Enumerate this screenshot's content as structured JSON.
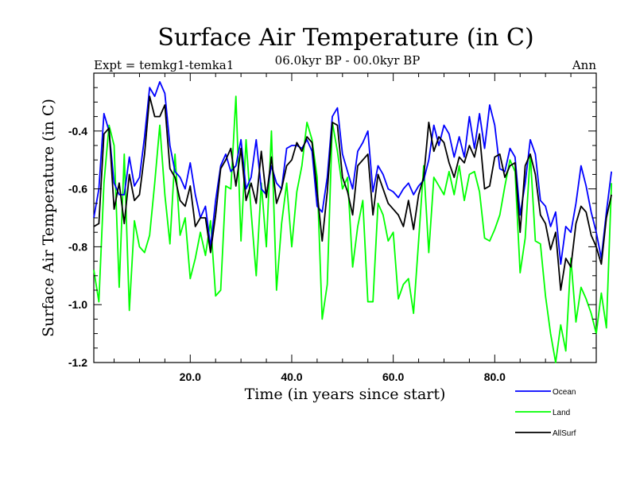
{
  "chart_data": {
    "type": "line",
    "title": "Surface Air Temperature (in C)",
    "subtitle_left": "Expt = temkg1-temka1",
    "subtitle_center": "06.0kyr BP - 00.0kyr BP",
    "subtitle_right": "Ann",
    "xlabel": "Time (in years since start)",
    "ylabel": "Surface Air Temperature (in C)",
    "xlim": [
      1,
      100
    ],
    "ylim": [
      -1.2,
      -0.2
    ],
    "xticks": [
      20,
      40,
      60,
      80
    ],
    "xtick_labels": [
      "20.0",
      "40.0",
      "60.0",
      "80.0"
    ],
    "yticks": [
      -0.4,
      -0.6,
      -0.8,
      -1.0,
      -1.2
    ],
    "ytick_labels": [
      "-0.4",
      "-0.6",
      "-0.8",
      "-1.0",
      "-1.2"
    ],
    "grid": false,
    "legend_position": "bottom-right",
    "series": [
      {
        "name": "Ocean",
        "color": "#0000ff",
        "values": [
          -0.7,
          -0.6,
          -0.34,
          -0.4,
          -0.58,
          -0.62,
          -0.62,
          -0.49,
          -0.59,
          -0.56,
          -0.42,
          -0.25,
          -0.28,
          -0.23,
          -0.27,
          -0.45,
          -0.54,
          -0.56,
          -0.6,
          -0.51,
          -0.62,
          -0.7,
          -0.66,
          -0.8,
          -0.64,
          -0.52,
          -0.48,
          -0.54,
          -0.52,
          -0.43,
          -0.6,
          -0.56,
          -0.43,
          -0.6,
          -0.62,
          -0.52,
          -0.58,
          -0.6,
          -0.46,
          -0.45,
          -0.45,
          -0.46,
          -0.43,
          -0.47,
          -0.66,
          -0.68,
          -0.56,
          -0.35,
          -0.32,
          -0.48,
          -0.54,
          -0.6,
          -0.47,
          -0.44,
          -0.4,
          -0.61,
          -0.52,
          -0.55,
          -0.6,
          -0.61,
          -0.63,
          -0.6,
          -0.58,
          -0.62,
          -0.59,
          -0.57,
          -0.5,
          -0.38,
          -0.45,
          -0.38,
          -0.41,
          -0.49,
          -0.42,
          -0.49,
          -0.35,
          -0.46,
          -0.34,
          -0.46,
          -0.31,
          -0.38,
          -0.53,
          -0.54,
          -0.46,
          -0.49,
          -0.69,
          -0.58,
          -0.43,
          -0.48,
          -0.64,
          -0.66,
          -0.73,
          -0.68,
          -0.86,
          -0.73,
          -0.75,
          -0.65,
          -0.52,
          -0.59,
          -0.68,
          -0.75,
          -0.84,
          -0.68,
          -0.54
        ]
      },
      {
        "name": "Land",
        "color": "#00ff00",
        "values": [
          -0.88,
          -0.99,
          -0.58,
          -0.38,
          -0.45,
          -0.94,
          -0.48,
          -1.02,
          -0.71,
          -0.8,
          -0.82,
          -0.76,
          -0.58,
          -0.38,
          -0.62,
          -0.79,
          -0.48,
          -0.76,
          -0.7,
          -0.91,
          -0.84,
          -0.75,
          -0.83,
          -0.71,
          -0.97,
          -0.95,
          -0.59,
          -0.6,
          -0.28,
          -0.78,
          -0.43,
          -0.68,
          -0.9,
          -0.58,
          -0.8,
          -0.4,
          -0.95,
          -0.72,
          -0.58,
          -0.8,
          -0.61,
          -0.52,
          -0.37,
          -0.43,
          -0.56,
          -1.05,
          -0.93,
          -0.37,
          -0.47,
          -0.6,
          -0.56,
          -0.87,
          -0.73,
          -0.64,
          -0.99,
          -0.99,
          -0.65,
          -0.69,
          -0.78,
          -0.75,
          -0.98,
          -0.93,
          -0.91,
          -1.03,
          -0.78,
          -0.52,
          -0.82,
          -0.56,
          -0.59,
          -0.62,
          -0.54,
          -0.62,
          -0.52,
          -0.64,
          -0.55,
          -0.54,
          -0.61,
          -0.77,
          -0.78,
          -0.74,
          -0.69,
          -0.59,
          -0.5,
          -0.54,
          -0.89,
          -0.77,
          -0.48,
          -0.78,
          -0.79,
          -0.97,
          -1.1,
          -1.2,
          -1.07,
          -1.16,
          -0.84,
          -1.06,
          -0.94,
          -0.98,
          -1.03,
          -1.1,
          -0.96,
          -1.08,
          -0.58
        ]
      },
      {
        "name": "AllSurf",
        "color": "#000000",
        "values": [
          -0.73,
          -0.72,
          -0.41,
          -0.39,
          -0.67,
          -0.58,
          -0.72,
          -0.55,
          -0.64,
          -0.62,
          -0.48,
          -0.28,
          -0.35,
          -0.35,
          -0.31,
          -0.53,
          -0.56,
          -0.64,
          -0.66,
          -0.59,
          -0.73,
          -0.7,
          -0.7,
          -0.82,
          -0.69,
          -0.53,
          -0.5,
          -0.46,
          -0.59,
          -0.46,
          -0.64,
          -0.58,
          -0.65,
          -0.47,
          -0.63,
          -0.49,
          -0.65,
          -0.6,
          -0.52,
          -0.5,
          -0.44,
          -0.47,
          -0.42,
          -0.44,
          -0.61,
          -0.78,
          -0.61,
          -0.37,
          -0.38,
          -0.56,
          -0.61,
          -0.69,
          -0.52,
          -0.5,
          -0.48,
          -0.69,
          -0.55,
          -0.6,
          -0.65,
          -0.67,
          -0.69,
          -0.73,
          -0.64,
          -0.74,
          -0.62,
          -0.56,
          -0.37,
          -0.47,
          -0.42,
          -0.44,
          -0.51,
          -0.56,
          -0.49,
          -0.51,
          -0.45,
          -0.49,
          -0.41,
          -0.6,
          -0.59,
          -0.49,
          -0.48,
          -0.56,
          -0.52,
          -0.51,
          -0.75,
          -0.52,
          -0.48,
          -0.55,
          -0.69,
          -0.72,
          -0.81,
          -0.75,
          -0.95,
          -0.84,
          -0.87,
          -0.72,
          -0.66,
          -0.68,
          -0.76,
          -0.8,
          -0.86,
          -0.7,
          -0.62
        ]
      }
    ]
  }
}
